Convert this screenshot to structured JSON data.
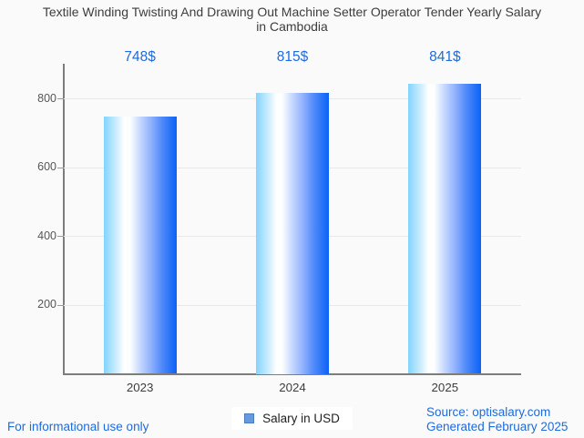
{
  "title_line1": "Textile Winding Twisting And Drawing Out Machine Setter Operator Tender Yearly Salary",
  "title_line2": "in Cambodia",
  "chart_data": {
    "type": "bar",
    "title": "Textile Winding Twisting And Drawing Out Machine Setter Operator Tender Yearly Salary in Cambodia",
    "categories": [
      "2023",
      "2024",
      "2025"
    ],
    "values": [
      748,
      815,
      841
    ],
    "value_labels": [
      "748$",
      "815$",
      "841$"
    ],
    "series_name": "Salary in USD",
    "xlabel": "",
    "ylabel": "",
    "ylim": [
      0,
      900
    ],
    "yticks": [
      200,
      400,
      600,
      800
    ],
    "grid": true,
    "legend_position": "bottom"
  },
  "legend": {
    "label": "Salary in USD"
  },
  "footer": {
    "left_note": "For informational use only",
    "source_line": "Source: optisalary.com",
    "generated_line": "Generated February 2025"
  },
  "colors": {
    "title_text": "#3d3d3d",
    "value_label_text": "#1d6bdd",
    "footer_text": "#1d6bdd",
    "axis_line": "#7d7d7d",
    "gridline": "#e9e9e9",
    "bar_gradient_left": "#82d4fd",
    "bar_gradient_mid": "#ffffff",
    "bar_gradient_right": "#0b62f6",
    "legend_swatch_fill": "#6699dd",
    "legend_swatch_border": "#4a7dc0",
    "background": "#fafafa"
  }
}
